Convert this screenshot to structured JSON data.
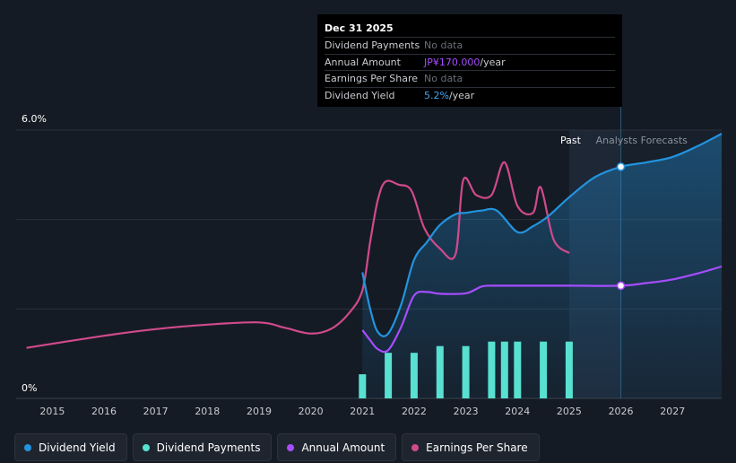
{
  "tooltip": {
    "date": "Dec 31 2025",
    "rows": [
      {
        "label": "Dividend Payments",
        "value": "No data",
        "suffix": ""
      },
      {
        "label": "Annual Amount",
        "value": "JP¥170.000",
        "suffix": "/year"
      },
      {
        "label": "Earnings Per Share",
        "value": "No data",
        "suffix": ""
      },
      {
        "label": "Dividend Yield",
        "value": "5.2%",
        "suffix": "/year"
      }
    ]
  },
  "legend": [
    {
      "label": "Dividend Yield",
      "color": "#2394df"
    },
    {
      "label": "Dividend Payments",
      "color": "#58e0d0"
    },
    {
      "label": "Annual Amount",
      "color": "#a64dff"
    },
    {
      "label": "Earnings Per Share",
      "color": "#d04a8c"
    }
  ],
  "chart_data": {
    "type": "line",
    "y_axis": {
      "top_label": "6.0%",
      "bottom_label": "0%",
      "ylim": [
        0,
        6.0
      ]
    },
    "x_ticks": [
      "2015",
      "2016",
      "2017",
      "2018",
      "2019",
      "2020",
      "2021",
      "2022",
      "2023",
      "2024",
      "2025",
      "2026",
      "2027"
    ],
    "xlim": [
      2014.3,
      2027.95
    ],
    "regions": {
      "past_label": "Past",
      "forecast_label": "Analysts Forecasts",
      "past_start": 2025.0,
      "forecast_start": 2025.35,
      "divider": 2026.0
    },
    "series": [
      {
        "name": "Earnings Per Share",
        "color": "#d04a8c",
        "points": [
          [
            2014.5,
            1.13
          ],
          [
            2016.0,
            1.4
          ],
          [
            2017.0,
            1.55
          ],
          [
            2018.0,
            1.65
          ],
          [
            2019.0,
            1.7
          ],
          [
            2019.5,
            1.58
          ],
          [
            2020.0,
            1.45
          ],
          [
            2020.4,
            1.56
          ],
          [
            2020.75,
            1.92
          ],
          [
            2021.0,
            2.42
          ],
          [
            2021.15,
            3.5
          ],
          [
            2021.3,
            4.45
          ],
          [
            2021.45,
            4.85
          ],
          [
            2021.7,
            4.78
          ],
          [
            2021.95,
            4.64
          ],
          [
            2022.2,
            3.8
          ],
          [
            2022.5,
            3.35
          ],
          [
            2022.8,
            3.22
          ],
          [
            2022.95,
            4.88
          ],
          [
            2023.2,
            4.55
          ],
          [
            2023.5,
            4.55
          ],
          [
            2023.75,
            5.28
          ],
          [
            2024.0,
            4.3
          ],
          [
            2024.3,
            4.15
          ],
          [
            2024.45,
            4.72
          ],
          [
            2024.7,
            3.55
          ],
          [
            2025.0,
            3.25
          ]
        ]
      },
      {
        "name": "Dividend Yield",
        "color": "#2394df",
        "fill": true,
        "points": [
          [
            2021.0,
            2.82
          ],
          [
            2021.15,
            2.0
          ],
          [
            2021.3,
            1.48
          ],
          [
            2021.5,
            1.45
          ],
          [
            2021.75,
            2.1
          ],
          [
            2022.0,
            3.1
          ],
          [
            2022.25,
            3.5
          ],
          [
            2022.5,
            3.88
          ],
          [
            2022.8,
            4.12
          ],
          [
            2023.0,
            4.15
          ],
          [
            2023.3,
            4.2
          ],
          [
            2023.6,
            4.2
          ],
          [
            2024.0,
            3.72
          ],
          [
            2024.3,
            3.85
          ],
          [
            2024.6,
            4.08
          ],
          [
            2025.0,
            4.5
          ],
          [
            2025.5,
            4.95
          ],
          [
            2026.0,
            5.18
          ],
          [
            2026.5,
            5.28
          ],
          [
            2027.0,
            5.4
          ],
          [
            2027.5,
            5.65
          ],
          [
            2027.95,
            5.92
          ]
        ]
      },
      {
        "name": "Annual Amount",
        "color": "#a64dff",
        "points": [
          [
            2021.0,
            1.53
          ],
          [
            2021.15,
            1.3
          ],
          [
            2021.3,
            1.1
          ],
          [
            2021.5,
            1.08
          ],
          [
            2021.75,
            1.6
          ],
          [
            2022.0,
            2.3
          ],
          [
            2022.25,
            2.38
          ],
          [
            2022.5,
            2.34
          ],
          [
            2023.0,
            2.35
          ],
          [
            2023.3,
            2.5
          ],
          [
            2023.5,
            2.52
          ],
          [
            2024.0,
            2.52
          ],
          [
            2025.0,
            2.52
          ],
          [
            2026.0,
            2.52
          ],
          [
            2026.5,
            2.58
          ],
          [
            2027.0,
            2.66
          ],
          [
            2027.5,
            2.8
          ],
          [
            2027.95,
            2.95
          ]
        ]
      }
    ],
    "bars": {
      "name": "Dividend Payments",
      "color": "#58e0d0",
      "points": [
        [
          2021.0,
          0.54
        ],
        [
          2021.5,
          1.02
        ],
        [
          2022.0,
          1.02
        ],
        [
          2022.5,
          1.17
        ],
        [
          2023.0,
          1.17
        ],
        [
          2023.5,
          1.27
        ],
        [
          2023.75,
          1.27
        ],
        [
          2024.0,
          1.27
        ],
        [
          2024.5,
          1.27
        ],
        [
          2025.0,
          1.27
        ]
      ]
    },
    "markers": [
      {
        "series": "Dividend Yield",
        "x": 2026.0,
        "y": 5.18
      },
      {
        "series": "Annual Amount",
        "x": 2026.0,
        "y": 2.52
      }
    ]
  }
}
